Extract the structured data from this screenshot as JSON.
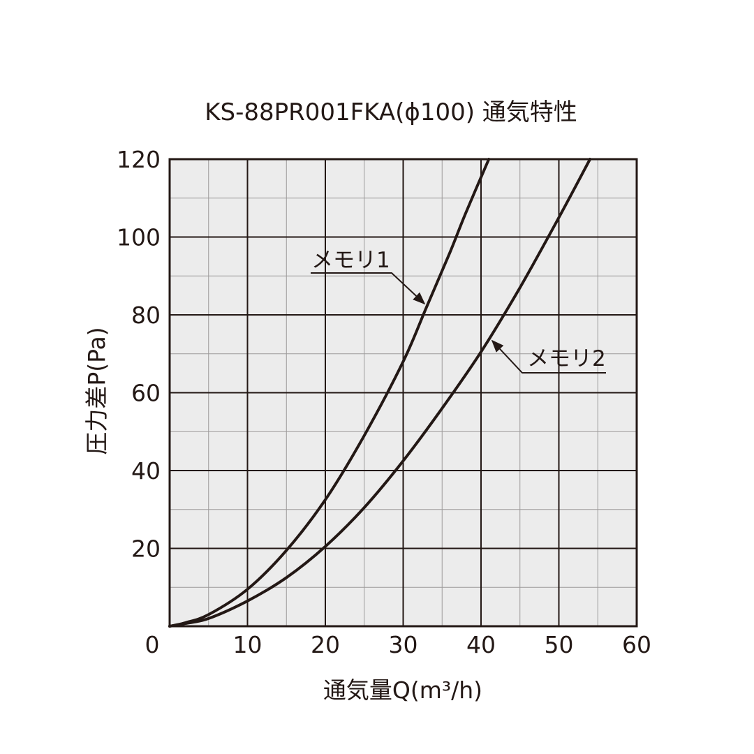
{
  "chart_data": {
    "type": "line",
    "title": "KS-88PR001FKA(ϕ100) 通気特性",
    "xlabel": "通気量Q(m³/h)",
    "ylabel": "圧力差P(Pa)",
    "xlim": [
      0,
      60
    ],
    "ylim": [
      0,
      120
    ],
    "x_ticks": [
      0,
      10,
      20,
      30,
      40,
      50,
      60
    ],
    "y_ticks": [
      0,
      20,
      40,
      60,
      80,
      100,
      120
    ],
    "x_minor_step": 5,
    "y_minor_step": 10,
    "grid": true,
    "plot_background": "#ececec",
    "grid_major_color": "#231815",
    "grid_minor_color": "#9c9a9a",
    "series_color": "#231815",
    "series": [
      {
        "name": "メモリ1",
        "x": [
          0,
          2,
          5,
          10,
          15,
          20,
          25,
          30,
          33,
          36,
          38,
          41
        ],
        "y": [
          0,
          0.9,
          3,
          9.5,
          19.5,
          32.5,
          49,
          68,
          82,
          96,
          106,
          120
        ]
      },
      {
        "name": "メモリ2",
        "x": [
          0,
          2,
          5,
          10,
          15,
          20,
          25,
          30,
          35,
          40,
          45,
          50,
          54
        ],
        "y": [
          0,
          0.7,
          2,
          6.5,
          12.5,
          20.5,
          30.5,
          42.5,
          56,
          70.5,
          87,
          105,
          120
        ]
      }
    ],
    "annotations": [
      {
        "text": "メモリ1",
        "series": 0,
        "arrow_to": [
          33,
          82
        ]
      },
      {
        "text": "メモリ2",
        "series": 1,
        "arrow_to": [
          41.5,
          73
        ]
      }
    ]
  }
}
